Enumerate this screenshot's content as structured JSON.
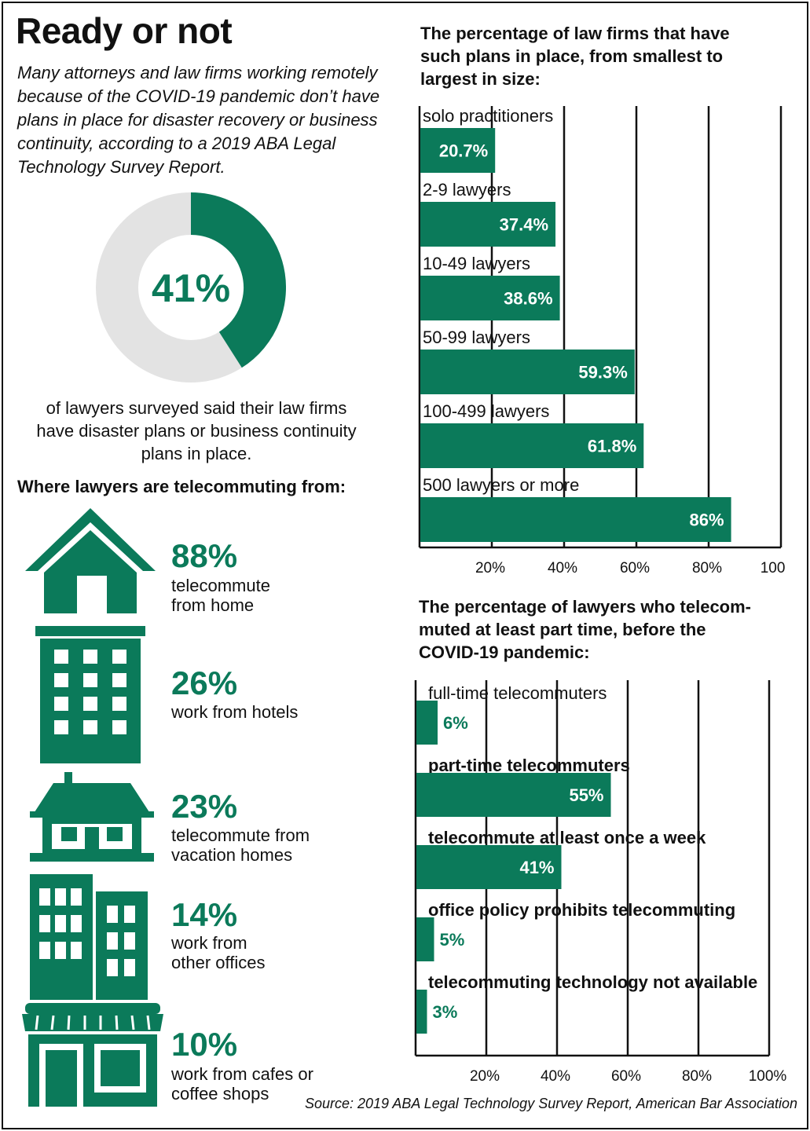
{
  "title": "Ready or not",
  "intro": "Many attorneys and law firms working remotely because of the COVID-19 pandemic don’t have plans in place for disaster recovery or business continuity, according to a 2019 ABA Legal Technology Survey Report.",
  "donut": {
    "value_label": "41%",
    "value": 41,
    "caption": "of lawyers surveyed said their law firms have disaster plans or business continuity plans in place."
  },
  "where": {
    "title": "Where lawyers are telecommuting from:",
    "items": [
      {
        "pct": "88%",
        "desc": "telecommute\nfrom home",
        "icon": "house-icon"
      },
      {
        "pct": "26%",
        "desc": "work from hotels",
        "icon": "hotel-building-icon"
      },
      {
        "pct": "23%",
        "desc": "telecommute from\nvacation homes",
        "icon": "vacation-home-icon"
      },
      {
        "pct": "14%",
        "desc": "work from\nother offices",
        "icon": "office-buildings-icon"
      },
      {
        "pct": "10%",
        "desc": "work from cafes or\ncoffee shops",
        "icon": "cafe-storefront-icon"
      }
    ]
  },
  "chart1_title": "The percentage of law firms that have\nsuch plans in place, from smallest to\nlargest in size:",
  "chart2_title": "The percentage of lawyers who telecom-\nmuted at least part time, before the\nCOVID-19 pandemic:",
  "source": "Source: 2019 ABA Legal Technology Survey Report, American Bar Association",
  "colors": {
    "accent": "#0b7a5a",
    "donut_rest": "#e3e3e3",
    "text": "#111111"
  },
  "chart_data": [
    {
      "type": "bar",
      "orientation": "horizontal",
      "categories": [
        "solo practitioners",
        "2-9 lawyers",
        "10-49 lawyers",
        "50-99 lawyers",
        "100-499 lawyers",
        "500 lawyers or more"
      ],
      "values": [
        20.7,
        37.4,
        38.6,
        59.3,
        61.8,
        86
      ],
      "value_labels": [
        "20.7%",
        "37.4%",
        "38.6%",
        "59.3%",
        "61.8%",
        "86%"
      ],
      "xlim": [
        0,
        100
      ],
      "xticks": [
        "20%",
        "40%",
        "60%",
        "80%",
        "100%"
      ],
      "grid": true
    },
    {
      "type": "bar",
      "orientation": "horizontal",
      "categories": [
        "full-time telecommuters",
        "part-time telecommuters",
        "telecommute at least once a week",
        "office policy prohibits telecommuting",
        "telecommuting technology not available"
      ],
      "values": [
        6,
        55,
        41,
        5,
        3
      ],
      "value_labels": [
        "6%",
        "55%",
        "41%",
        "5%",
        "3%"
      ],
      "xlim": [
        0,
        100
      ],
      "xticks": [
        "20%",
        "40%",
        "60%",
        "80%",
        "100%"
      ],
      "grid": true
    }
  ]
}
